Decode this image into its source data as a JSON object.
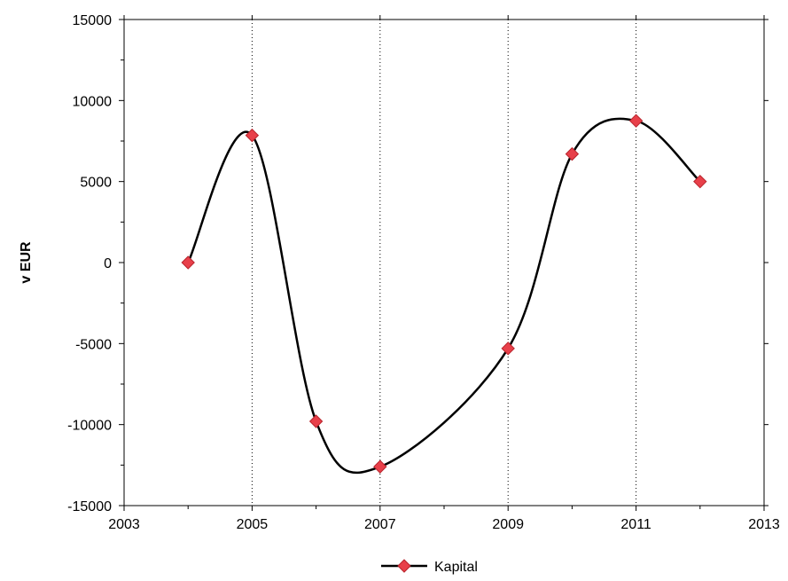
{
  "chart_data": {
    "type": "line",
    "title": "",
    "xlabel": "",
    "ylabel": "v EUR",
    "xlim": [
      2003,
      2013
    ],
    "ylim": [
      -15000,
      15000
    ],
    "x_ticks": [
      2003,
      2005,
      2007,
      2009,
      2011,
      2013
    ],
    "y_ticks": [
      -15000,
      -10000,
      -5000,
      0,
      5000,
      10000,
      15000
    ],
    "vertical_gridlines": [
      2005,
      2007,
      2009,
      2011
    ],
    "grid": "vertical dotted",
    "legend_position": "bottom-center",
    "smooth": true,
    "series": [
      {
        "name": "Kapital",
        "line_color": "#000000",
        "marker": "diamond",
        "marker_color": "#e8404a",
        "x": [
          2004,
          2005,
          2006,
          2007,
          2009,
          2010,
          2011,
          2012
        ],
        "values": [
          0,
          7850,
          -9800,
          -12600,
          -5300,
          6700,
          8750,
          5000
        ]
      }
    ]
  }
}
